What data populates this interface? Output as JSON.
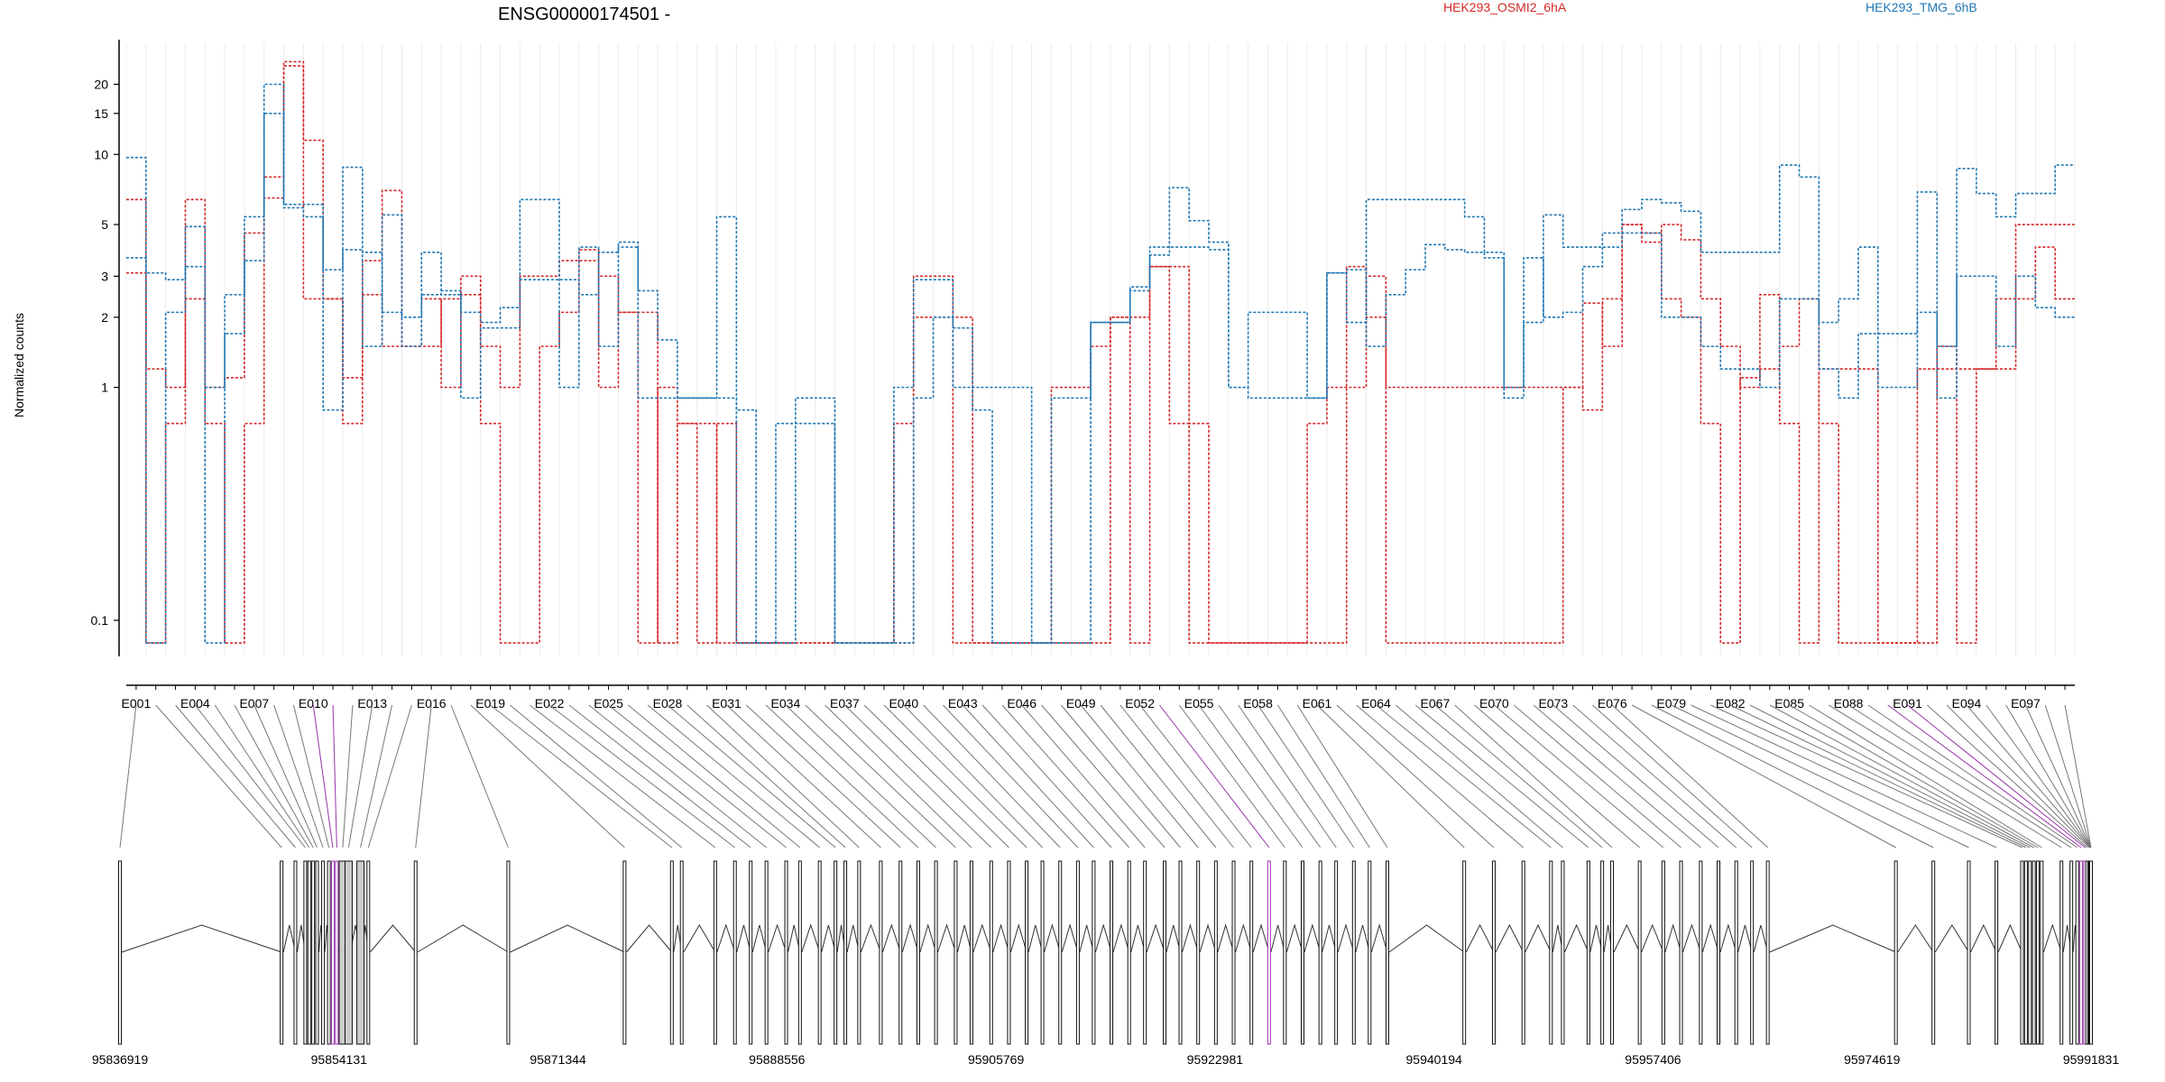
{
  "chart_data": {
    "type": "line",
    "title": "ENSG00000174501 -",
    "ylabel": "Normalized counts",
    "xlabel": "",
    "yscale": "log",
    "y_ticks": [
      0.1,
      1,
      2,
      3,
      5,
      10,
      15,
      20
    ],
    "y_tick_labels": [
      "0.1",
      "1",
      "2",
      "3",
      "5",
      "10",
      "15",
      "20"
    ],
    "grid": true,
    "legend_placement": "top",
    "exon_tick_labels": [
      "E001",
      "E004",
      "E007",
      "E010",
      "E013",
      "E016",
      "E019",
      "E022",
      "E025",
      "E028",
      "E031",
      "E034",
      "E037",
      "E040",
      "E043",
      "E046",
      "E049",
      "E052",
      "E055",
      "E058",
      "E061",
      "E064",
      "E067",
      "E070",
      "E073",
      "E076",
      "E079",
      "E082",
      "E085",
      "E088",
      "E091",
      "E094",
      "E097"
    ],
    "genomic_tick_labels": [
      "95836919",
      "95854131",
      "95871344",
      "95888556",
      "95905769",
      "95922981",
      "95940194",
      "95957406",
      "95974619",
      "95991831"
    ],
    "genomic_range": [
      95836919,
      95991831
    ],
    "exon_count": 99,
    "series": [
      {
        "name": "HEK293_OSMI2_6hA",
        "color": "#d62728",
        "values": [
          6.4,
          0.08,
          0.7,
          6.4,
          0.7,
          0.08,
          0.7,
          8.0,
          24.0,
          11.5,
          2.4,
          1.1,
          3.5,
          7.0,
          1.5,
          2.4,
          1.0,
          2.5,
          0.7,
          0.08,
          0.08,
          1.5,
          2.1,
          3.9,
          1.0,
          2.1,
          2.1,
          0.08,
          0.7,
          0.08,
          0.7,
          0.08,
          0.08,
          0.08,
          0.08,
          0.08,
          0.08,
          0.08,
          0.08,
          0.08,
          2.0,
          2.0,
          0.08,
          0.08,
          0.08,
          0.08,
          0.08,
          0.08,
          0.08,
          0.08,
          2.0,
          0.08,
          3.3,
          0.7,
          0.08,
          0.08,
          0.08,
          0.08,
          0.08,
          0.08,
          0.08,
          0.08,
          3.3,
          2.0,
          0.08,
          0.08,
          0.08,
          0.08,
          0.08,
          0.08,
          0.08,
          0.08,
          0.08,
          1.0,
          2.3,
          1.5,
          5.0,
          4.2,
          5.0,
          4.3,
          2.4,
          1.5,
          1.0,
          2.5,
          0.7,
          0.08,
          1.2,
          1.2,
          1.2,
          0.08,
          0.08,
          0.08,
          1.2,
          0.08,
          1.2,
          2.4,
          2.4,
          4.0,
          2.4
        ]
      },
      {
        "name": "HEK293_OSMI2_6hA",
        "color": "#d62728",
        "values": [
          3.1,
          1.2,
          1.0,
          2.4,
          1.0,
          1.1,
          4.6,
          6.5,
          25.0,
          2.4,
          2.4,
          0.7,
          2.5,
          1.5,
          1.5,
          1.5,
          2.4,
          3.0,
          1.5,
          1.0,
          3.0,
          3.0,
          3.5,
          3.5,
          3.0,
          2.1,
          0.08,
          1.0,
          0.7,
          0.7,
          0.08,
          0.08,
          0.08,
          0.08,
          0.08,
          0.08,
          0.08,
          0.08,
          0.08,
          0.7,
          3.0,
          3.0,
          2.0,
          0.08,
          0.08,
          0.08,
          0.08,
          1.0,
          1.0,
          1.5,
          2.0,
          2.0,
          3.3,
          3.3,
          0.7,
          0.08,
          0.08,
          0.08,
          0.08,
          0.08,
          0.7,
          1.0,
          1.0,
          3.0,
          1.0,
          1.0,
          1.0,
          1.0,
          1.0,
          1.0,
          1.0,
          1.0,
          1.0,
          1.0,
          0.8,
          2.4,
          5.0,
          4.6,
          2.4,
          2.0,
          0.7,
          0.08,
          1.1,
          1.2,
          1.5,
          2.4,
          0.7,
          0.08,
          0.08,
          0.08,
          0.08,
          1.2,
          1.5,
          1.2,
          1.2,
          1.2,
          5.0,
          5.0,
          5.0
        ]
      },
      {
        "name": "HEK293_TMG_6hB",
        "color": "#1f77b4",
        "values": [
          9.7,
          0.08,
          2.1,
          4.9,
          0.08,
          1.7,
          5.4,
          20.0,
          6.1,
          6.1,
          0.8,
          8.8,
          1.5,
          5.5,
          1.5,
          3.8,
          2.5,
          0.9,
          1.8,
          1.8,
          6.4,
          6.4,
          1.0,
          4.0,
          1.5,
          4.0,
          0.9,
          0.9,
          0.9,
          0.9,
          0.9,
          0.08,
          0.08,
          0.08,
          0.9,
          0.9,
          0.08,
          0.08,
          0.08,
          0.08,
          0.9,
          2.0,
          1.0,
          1.0,
          1.0,
          1.0,
          0.08,
          0.9,
          0.9,
          1.9,
          1.9,
          2.7,
          3.7,
          7.2,
          5.2,
          4.2,
          1.0,
          0.9,
          0.9,
          0.9,
          0.9,
          3.1,
          1.9,
          6.4,
          6.4,
          6.4,
          6.4,
          6.4,
          5.4,
          3.8,
          0.9,
          1.9,
          5.5,
          4.0,
          4.0,
          4.0,
          5.8,
          6.4,
          6.2,
          5.7,
          3.8,
          3.8,
          3.8,
          3.8,
          9.0,
          8.0,
          1.9,
          2.4,
          4.0,
          1.0,
          1.0,
          6.9,
          0.9,
          8.7,
          6.8,
          5.4,
          6.8,
          6.8,
          9.0
        ]
      },
      {
        "name": "HEK293_TMG_6hB",
        "color": "#1f77b4",
        "values": [
          3.6,
          3.1,
          2.9,
          3.3,
          1.0,
          2.5,
          3.5,
          15.0,
          5.9,
          5.4,
          3.2,
          3.9,
          3.8,
          2.1,
          2.0,
          2.5,
          2.6,
          2.1,
          1.9,
          2.2,
          2.9,
          2.9,
          2.9,
          2.5,
          3.8,
          4.2,
          2.6,
          1.6,
          0.9,
          0.9,
          5.4,
          0.8,
          0.08,
          0.7,
          0.7,
          0.7,
          0.08,
          0.08,
          0.08,
          1.0,
          2.9,
          2.9,
          1.8,
          0.8,
          0.08,
          0.08,
          0.08,
          0.08,
          0.08,
          1.9,
          1.9,
          2.6,
          4.0,
          4.0,
          4.0,
          3.9,
          1.0,
          2.1,
          2.1,
          2.1,
          0.9,
          3.1,
          3.2,
          1.5,
          2.5,
          3.2,
          4.1,
          3.9,
          3.8,
          3.6,
          1.0,
          3.6,
          2.0,
          2.1,
          3.3,
          4.6,
          4.6,
          4.6,
          2.0,
          2.0,
          1.5,
          1.2,
          1.2,
          1.0,
          2.4,
          2.4,
          1.2,
          0.9,
          1.7,
          1.7,
          1.7,
          2.1,
          1.5,
          3.0,
          3.0,
          1.5,
          3.0,
          2.2,
          2.0
        ]
      }
    ]
  }
}
